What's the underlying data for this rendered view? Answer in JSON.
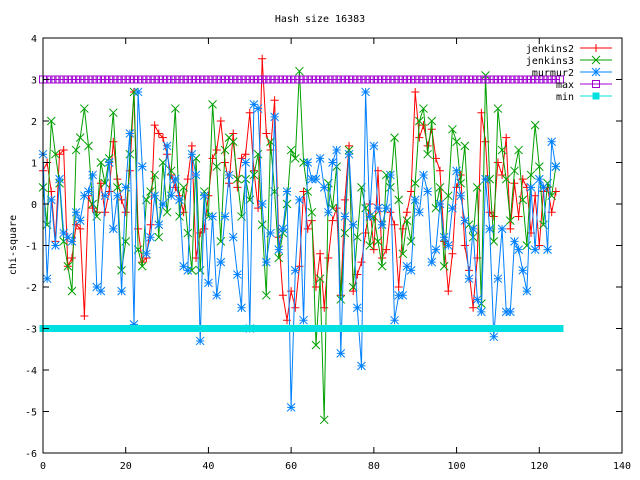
{
  "chart_data": {
    "type": "line",
    "title": "Hash size 16383",
    "xlabel": "",
    "ylabel": "chi-square",
    "xlim": [
      0,
      140
    ],
    "ylim": [
      -6,
      4
    ],
    "xticks": [
      0,
      20,
      40,
      60,
      80,
      100,
      120,
      140
    ],
    "yticks": [
      -6,
      -5,
      -4,
      -3,
      -2,
      -1,
      0,
      1,
      2,
      3,
      4
    ],
    "grid": false,
    "legend_position": "top-right",
    "series": [
      {
        "name": "jenkins2",
        "color": "#ff0000",
        "marker": "plus",
        "values": [
          0.8,
          1.0,
          0.3,
          -0.9,
          1.2,
          1.3,
          -1.5,
          -1.3,
          -0.5,
          -0.6,
          -2.7,
          0.2,
          -0.1,
          -0.2,
          0.5,
          -0.2,
          0.3,
          1.5,
          0.6,
          0.1,
          -0.2,
          0.8,
          2.7,
          -0.6,
          -1.4,
          -1.3,
          -0.5,
          1.9,
          1.7,
          1.6,
          1.2,
          0.7,
          0.4,
          0.2,
          -0.2,
          0.6,
          1.4,
          -1.3,
          -0.7,
          -0.6,
          0.2,
          1.1,
          1.3,
          2.0,
          1.0,
          0.5,
          1.7,
          0.4,
          1.1,
          1.2,
          2.2,
          0.8,
          -0.1,
          3.5,
          1.7,
          1.3,
          2.5,
          -0.8,
          -2.2,
          -2.8,
          -2.1,
          -2.5,
          -1.5,
          0.3,
          -0.6,
          -0.4,
          -2.0,
          -1.2,
          -2.5,
          -1.3,
          -0.4,
          -0.1,
          -2.2,
          0.1,
          1.4,
          -2.1,
          -1.7,
          -1.4,
          -0.7,
          0.0,
          -1.1,
          0.8,
          -1.3,
          -1.1,
          -0.2,
          -0.5,
          -2.0,
          -0.6,
          -0.2,
          0.3,
          2.7,
          1.6,
          1.9,
          1.4,
          1.8,
          1.1,
          0.8,
          -0.9,
          -2.1,
          -1.2,
          0.4,
          0.7,
          -1.0,
          -1.6,
          -2.5,
          -1.3,
          2.2,
          1.5,
          -0.2,
          -0.3,
          1.0,
          0.7,
          1.6,
          -0.6,
          0.5,
          -0.3,
          0.6,
          0.4,
          -0.7,
          0.2,
          -1.0,
          0.3,
          0.4,
          -0.2,
          0.3
        ]
      },
      {
        "name": "jenkins3",
        "color": "#00a000",
        "marker": "cross",
        "values": [
          0.4,
          -0.5,
          2.0,
          1.2,
          0.5,
          -0.9,
          -1.5,
          -2.1,
          1.3,
          1.6,
          2.3,
          1.4,
          0.0,
          -0.3,
          1.0,
          0.5,
          1.1,
          2.2,
          0.4,
          -1.6,
          -0.9,
          1.2,
          2.7,
          -1.1,
          -1.5,
          0.1,
          0.3,
          0.7,
          -0.8,
          1.0,
          -0.2,
          0.8,
          2.3,
          -0.3,
          0.4,
          -0.7,
          -1.6,
          1.1,
          -1.6,
          0.3,
          -0.3,
          2.4,
          0.9,
          -0.9,
          1.3,
          1.6,
          1.5,
          0.6,
          -0.3,
          0.6,
          0.1,
          0.7,
          1.2,
          -0.5,
          -2.2,
          1.5,
          0.3,
          -1.3,
          -0.7,
          0.0,
          1.3,
          1.1,
          3.2,
          1.0,
          0.3,
          -0.2,
          -3.4,
          -1.8,
          -5.2,
          0.5,
          -0.1,
          0.9,
          -2.3,
          -0.7,
          1.3,
          -2.0,
          -0.8,
          0.4,
          -0.1,
          -1.0,
          -0.3,
          -0.9,
          -1.5,
          0.7,
          0.4,
          1.6,
          0.1,
          -1.2,
          -0.4,
          -0.9,
          0.5,
          2.0,
          2.3,
          1.2,
          2.0,
          -0.1,
          0.4,
          -1.5,
          0.2,
          1.8,
          1.5,
          0.5,
          1.4,
          -0.5,
          -0.8,
          0.4,
          -2.4,
          3.1,
          0.6,
          -0.9,
          2.3,
          1.3,
          0.6,
          -0.4,
          0.8,
          1.3,
          0.1,
          -1.0,
          0.7,
          1.9,
          0.9,
          -0.5,
          0.5,
          0.2,
          0.9
        ]
      },
      {
        "name": "murmur2",
        "color": "#0080ff",
        "marker": "star",
        "values": [
          1.2,
          -1.8,
          0.1,
          -1.0,
          0.6,
          -0.7,
          -0.8,
          -0.9,
          -0.2,
          -0.4,
          0.2,
          0.3,
          0.7,
          -2.0,
          -2.1,
          0.2,
          1.0,
          -0.6,
          0.2,
          -2.1,
          0.4,
          1.7,
          -2.9,
          2.7,
          0.9,
          -1.2,
          -0.8,
          0.2,
          -0.5,
          0.0,
          1.4,
          0.2,
          0.6,
          0.1,
          -1.5,
          -1.6,
          1.2,
          0.7,
          -3.3,
          0.2,
          -1.9,
          -0.3,
          -2.2,
          -1.4,
          -0.3,
          0.7,
          -0.8,
          -1.7,
          -2.5,
          1.0,
          -3.0,
          2.4,
          2.3,
          0.0,
          -1.4,
          -0.7,
          2.1,
          -1.1,
          -0.6,
          0.3,
          -4.9,
          -1.6,
          0.1,
          -2.8,
          1.0,
          0.6,
          0.6,
          1.1,
          0.4,
          -0.2,
          1.0,
          1.3,
          -3.6,
          -0.3,
          1.2,
          -0.5,
          -2.5,
          -3.9,
          2.7,
          -0.3,
          1.4,
          -0.1,
          -0.5,
          -0.1,
          0.7,
          -2.8,
          -2.2,
          -2.2,
          -1.5,
          -1.6,
          0.1,
          -0.2,
          0.7,
          0.3,
          -1.4,
          -1.1,
          0.0,
          -0.8,
          -1.0,
          -0.1,
          0.8,
          0.2,
          -0.4,
          -1.8,
          -0.6,
          -2.3,
          -2.6,
          0.6,
          -0.6,
          -3.2,
          -1.8,
          -0.6,
          -2.6,
          -2.6,
          -0.9,
          -1.1,
          -1.6,
          -2.1,
          0.4,
          -1.1,
          0.6,
          0.4,
          -1.1,
          1.5,
          0.9
        ]
      },
      {
        "name": "max",
        "color": "#a000d0",
        "marker": "open-square",
        "constant": 3,
        "x_range": [
          0,
          125
        ]
      },
      {
        "name": "min",
        "color": "#00e0e0",
        "marker": "filled-square",
        "constant": -3,
        "x_range": [
          0,
          125
        ]
      }
    ]
  }
}
